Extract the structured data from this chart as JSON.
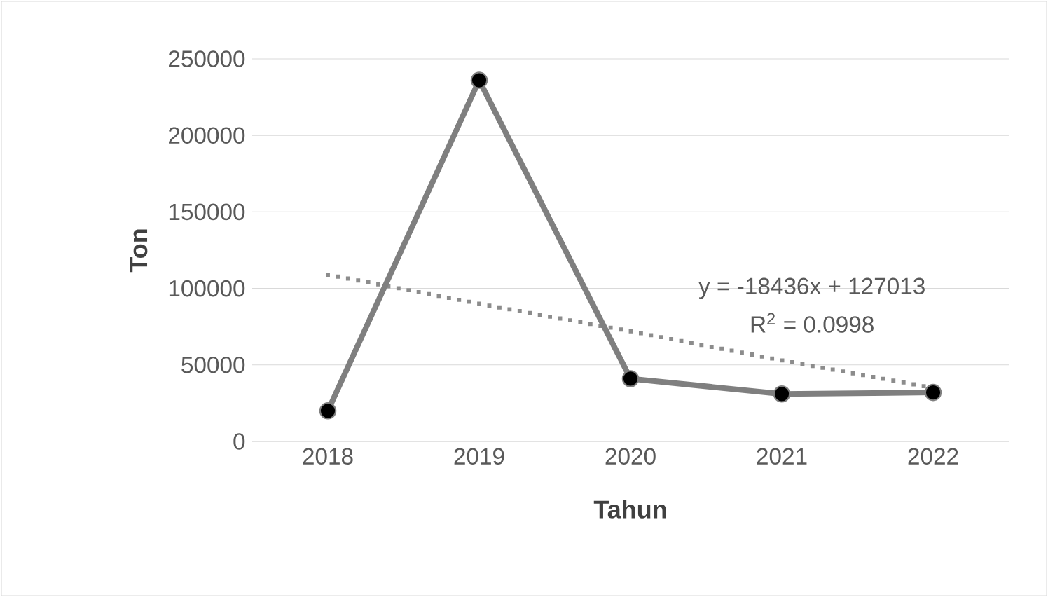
{
  "chart_data": {
    "type": "line",
    "xlabel": "Tahun",
    "ylabel": "Ton",
    "categories": [
      "2018",
      "2019",
      "2020",
      "2021",
      "2022"
    ],
    "series": [
      {
        "color": "#7f7f7f",
        "values": [
          20000,
          236000,
          41000,
          31000,
          32000
        ],
        "marker": "circle",
        "line_style": "solid"
      },
      {
        "type": "line",
        "color": "#8c8c8c",
        "values": [
          109000,
          90000,
          72000,
          53000,
          35000
        ],
        "marker": "none",
        "line_style": "dotted"
      }
    ],
    "ylim": [
      0,
      250000
    ],
    "yticks": [
      0,
      50000,
      100000,
      150000,
      200000,
      250000
    ],
    "grid": "y",
    "annotations": [
      "y = -18436x + 127013",
      "R$^{2}$ = 0.0998"
    ]
  }
}
